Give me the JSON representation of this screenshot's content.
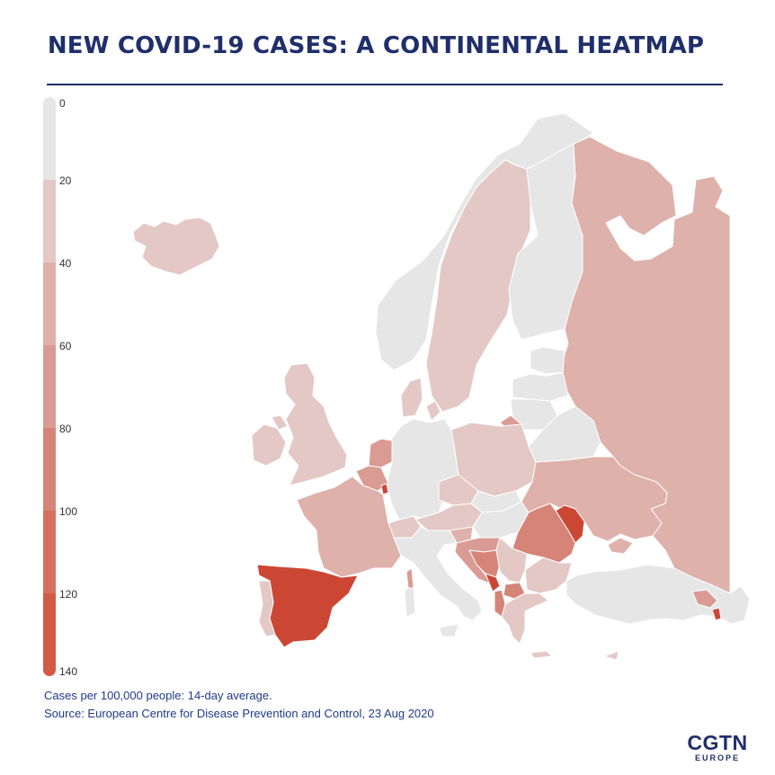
{
  "title": "NEW COVID-19 CASES: A CONTINENTAL HEATMAP",
  "legend": {
    "ticks": [
      "0",
      "20",
      "40",
      "60",
      "80",
      "100",
      "120",
      "140"
    ],
    "colors": [
      "#e6e6e6",
      "#e4c8c5",
      "#deb1ab",
      "#d99b93",
      "#d68478",
      "#d6705f",
      "#d45a45",
      "#cc4634"
    ]
  },
  "notes": {
    "line1": "Cases per 100,000 people: 14-day average.",
    "line2": "Source: European Centre for Disease Prevention and Control, 23 Aug 2020"
  },
  "logo": {
    "main": "CGTN",
    "sub": "EUROPE"
  },
  "map_colors": {
    "none": "#e6e6e6",
    "c20": "#e4c8c5",
    "c40": "#deb1ab",
    "c60": "#d99b93",
    "c80": "#d68478",
    "c120": "#cc4634"
  }
}
